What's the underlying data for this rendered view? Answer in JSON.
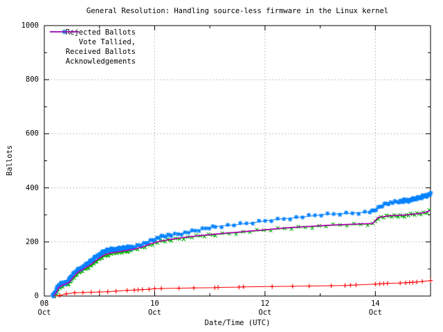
{
  "chart_data": {
    "type": "line",
    "title": "General Resolution: Handling source-less firmware in the Linux kernel",
    "xlabel": "Date/Time (UTC)",
    "ylabel": "Ballots",
    "xlim": [
      8,
      15
    ],
    "ylim": [
      0,
      1000
    ],
    "x_unit": "day of October (UTC)",
    "grid": "dotted gray at major ticks",
    "legend_position": "top-left inside plot",
    "yticks": [
      {
        "value": 0,
        "label": "0"
      },
      {
        "value": 200,
        "label": "200"
      },
      {
        "value": 400,
        "label": "400"
      },
      {
        "value": 600,
        "label": "600"
      },
      {
        "value": 800,
        "label": "800"
      },
      {
        "value": 1000,
        "label": "1000"
      }
    ],
    "ytick_minor_values": [
      100,
      300,
      500,
      700,
      900
    ],
    "xticks": [
      {
        "pos": 8,
        "line1": "08",
        "line2": "Oct"
      },
      {
        "pos": 10,
        "line1": "10",
        "line2": "Oct"
      },
      {
        "pos": 12,
        "line1": "12",
        "line2": "Oct"
      },
      {
        "pos": 14,
        "line1": "14",
        "line2": "Oct"
      }
    ],
    "xtick_minor_pos": [
      9,
      11,
      13
    ],
    "colors": {
      "background": "#ffffff",
      "plot_border": "#000000",
      "grid": "#b0b0b0",
      "text": "#000000"
    },
    "series": [
      {
        "name": "Rejected Ballots",
        "color": "#ff0000",
        "marker": "plus",
        "points": [
          [
            8.2,
            0
          ],
          [
            8.28,
            2
          ],
          [
            8.4,
            8
          ],
          [
            8.55,
            12
          ],
          [
            8.7,
            13
          ],
          [
            8.85,
            14
          ],
          [
            9.0,
            15
          ],
          [
            9.15,
            16
          ],
          [
            9.3,
            18
          ],
          [
            9.5,
            21
          ],
          [
            9.63,
            22
          ],
          [
            9.7,
            23
          ],
          [
            9.78,
            24
          ],
          [
            9.9,
            25
          ],
          [
            10.0,
            27
          ],
          [
            10.12,
            28
          ],
          [
            10.44,
            29
          ],
          [
            10.71,
            30
          ],
          [
            11.09,
            31
          ],
          [
            11.15,
            32
          ],
          [
            11.53,
            33
          ],
          [
            11.61,
            34
          ],
          [
            12.13,
            35
          ],
          [
            12.5,
            36
          ],
          [
            12.8,
            37
          ],
          [
            13.2,
            38
          ],
          [
            13.45,
            39
          ],
          [
            13.55,
            40
          ],
          [
            13.65,
            41
          ],
          [
            14.0,
            44
          ],
          [
            14.08,
            45
          ],
          [
            14.15,
            46
          ],
          [
            14.22,
            47
          ],
          [
            14.45,
            48
          ],
          [
            14.55,
            49
          ],
          [
            14.62,
            50
          ],
          [
            14.68,
            51
          ],
          [
            14.75,
            52
          ],
          [
            14.85,
            54
          ],
          [
            15.0,
            57
          ]
        ]
      },
      {
        "name": "Vote Tallied,",
        "color": "#00b000",
        "marker": "cross",
        "points": [
          [
            8.17,
            0
          ],
          [
            8.22,
            12
          ],
          [
            8.27,
            30
          ],
          [
            8.35,
            40
          ],
          [
            8.45,
            48
          ],
          [
            8.52,
            66
          ],
          [
            8.6,
            84
          ],
          [
            8.7,
            96
          ],
          [
            8.8,
            108
          ],
          [
            8.9,
            122
          ],
          [
            9.0,
            138
          ],
          [
            9.1,
            150
          ],
          [
            9.2,
            157
          ],
          [
            9.35,
            162
          ],
          [
            9.5,
            167
          ],
          [
            9.65,
            173
          ],
          [
            9.8,
            181
          ],
          [
            9.95,
            193
          ],
          [
            10.1,
            201
          ],
          [
            10.3,
            208
          ],
          [
            10.5,
            214
          ],
          [
            10.75,
            220
          ],
          [
            11.0,
            225
          ],
          [
            11.25,
            230
          ],
          [
            11.5,
            234
          ],
          [
            11.75,
            239
          ],
          [
            12.0,
            243
          ],
          [
            12.25,
            248
          ],
          [
            12.5,
            252
          ],
          [
            12.75,
            255
          ],
          [
            13.0,
            258
          ],
          [
            13.25,
            261
          ],
          [
            13.5,
            263
          ],
          [
            13.75,
            265
          ],
          [
            13.95,
            266
          ],
          [
            14.05,
            289
          ],
          [
            14.25,
            295
          ],
          [
            14.5,
            297
          ],
          [
            14.75,
            303
          ],
          [
            14.9,
            308
          ],
          [
            15.0,
            319
          ]
        ]
      },
      {
        "name": "Received Ballots",
        "color": "#0080ff",
        "marker": "asterisk",
        "points": [
          [
            8.15,
            0
          ],
          [
            8.2,
            18
          ],
          [
            8.25,
            38
          ],
          [
            8.33,
            46
          ],
          [
            8.42,
            52
          ],
          [
            8.5,
            76
          ],
          [
            8.58,
            92
          ],
          [
            8.65,
            101
          ],
          [
            8.75,
            114
          ],
          [
            8.85,
            130
          ],
          [
            8.95,
            147
          ],
          [
            9.05,
            160
          ],
          [
            9.15,
            168
          ],
          [
            9.3,
            172
          ],
          [
            9.5,
            177
          ],
          [
            9.65,
            182
          ],
          [
            9.8,
            192
          ],
          [
            9.95,
            207
          ],
          [
            10.1,
            218
          ],
          [
            10.3,
            226
          ],
          [
            10.5,
            232
          ],
          [
            10.75,
            241
          ],
          [
            11.0,
            254
          ],
          [
            11.25,
            260
          ],
          [
            11.5,
            264
          ],
          [
            11.75,
            270
          ],
          [
            12.0,
            278
          ],
          [
            12.25,
            284
          ],
          [
            12.5,
            289
          ],
          [
            12.75,
            294
          ],
          [
            13.0,
            300
          ],
          [
            13.3,
            304
          ],
          [
            13.6,
            307
          ],
          [
            13.95,
            312
          ],
          [
            14.1,
            332
          ],
          [
            14.2,
            343
          ],
          [
            14.4,
            348
          ],
          [
            14.6,
            353
          ],
          [
            14.8,
            362
          ],
          [
            15.0,
            377
          ]
        ]
      },
      {
        "name": "Acknowledgements",
        "color": "#c000c0",
        "marker": "none",
        "points": [
          [
            8.17,
            0
          ],
          [
            8.22,
            14
          ],
          [
            8.27,
            33
          ],
          [
            8.35,
            42
          ],
          [
            8.45,
            50
          ],
          [
            8.52,
            69
          ],
          [
            8.6,
            87
          ],
          [
            8.7,
            99
          ],
          [
            8.8,
            111
          ],
          [
            8.9,
            125
          ],
          [
            9.0,
            141
          ],
          [
            9.1,
            153
          ],
          [
            9.2,
            159
          ],
          [
            9.35,
            164
          ],
          [
            9.5,
            169
          ],
          [
            9.65,
            175
          ],
          [
            9.8,
            183
          ],
          [
            9.95,
            195
          ],
          [
            10.1,
            203
          ],
          [
            10.3,
            210
          ],
          [
            10.5,
            216
          ],
          [
            10.75,
            222
          ],
          [
            11.0,
            227
          ],
          [
            11.25,
            232
          ],
          [
            11.5,
            236
          ],
          [
            11.75,
            241
          ],
          [
            12.0,
            245
          ],
          [
            12.25,
            250
          ],
          [
            12.5,
            254
          ],
          [
            12.75,
            257
          ],
          [
            13.0,
            260
          ],
          [
            13.25,
            263
          ],
          [
            13.5,
            265
          ],
          [
            13.75,
            267
          ],
          [
            13.95,
            268
          ],
          [
            14.05,
            291
          ],
          [
            14.25,
            297
          ],
          [
            14.5,
            299
          ],
          [
            14.75,
            304
          ],
          [
            14.9,
            309
          ],
          [
            15.0,
            317
          ]
        ]
      }
    ]
  }
}
